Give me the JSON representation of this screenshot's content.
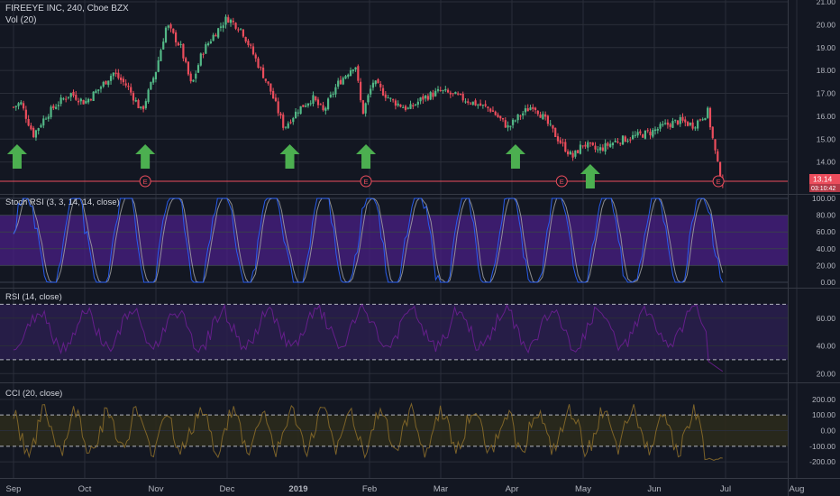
{
  "colors": {
    "background": "#131722",
    "grid": "#2a2e39",
    "axis_text": "#b2b5be",
    "up": "#53b987",
    "down": "#eb4d5c",
    "arrow": "#4caf50",
    "stoch_band": "#4a1f86",
    "stoch_k": "#2962ff",
    "stoch_d": "#aaaaaa",
    "rsi_band": "#2a1f4d",
    "rsi_line": "#7b1fa2",
    "cci_band": "#2b2a1c",
    "cci_line": "#8d6e2a",
    "earnings": "#eb4d5c",
    "price_badge": "#eb4d5c"
  },
  "main_legend": {
    "title": "FIREEYE INC, 240, Cboe BZX",
    "volume": "Vol (20)"
  },
  "stoch_legend": {
    "label": "Stoch RSI (3, 3, 14, 14, close)"
  },
  "rsi_legend": {
    "label": "RSI (14, close)"
  },
  "cci_legend": {
    "label": "CCI (20, close)"
  },
  "earnings_marker": "E",
  "last_price": {
    "value": "13.14",
    "countdown": "03:10:42"
  },
  "x_axis": {
    "labels": [
      "Sep",
      "Oct",
      "Nov",
      "Dec",
      "2019",
      "Feb",
      "Mar",
      "Apr",
      "May",
      "Jun",
      "Jul",
      "Aug"
    ]
  },
  "chart_data": [
    {
      "type": "candlestick",
      "title": "FIREEYE INC, 240, Cboe BZX",
      "ylim": [
        13.0,
        21.0
      ],
      "y_ticks": [
        "21.00",
        "20.00",
        "19.00",
        "18.00",
        "17.00",
        "16.00",
        "15.00",
        "14.00"
      ],
      "close_path": [
        {
          "m": 0.0,
          "v": 16.4
        },
        {
          "m": 0.1,
          "v": 16.6
        },
        {
          "m": 0.2,
          "v": 15.8
        },
        {
          "m": 0.28,
          "v": 15.2
        },
        {
          "m": 0.45,
          "v": 16.0
        },
        {
          "m": 0.6,
          "v": 16.5
        },
        {
          "m": 0.8,
          "v": 17.0
        },
        {
          "m": 1.0,
          "v": 16.6
        },
        {
          "m": 1.2,
          "v": 17.2
        },
        {
          "m": 1.4,
          "v": 17.9
        },
        {
          "m": 1.6,
          "v": 17.3
        },
        {
          "m": 1.8,
          "v": 16.2
        },
        {
          "m": 2.0,
          "v": 18.0
        },
        {
          "m": 2.15,
          "v": 20.0
        },
        {
          "m": 2.35,
          "v": 19.0
        },
        {
          "m": 2.5,
          "v": 17.3
        },
        {
          "m": 2.65,
          "v": 18.8
        },
        {
          "m": 2.8,
          "v": 19.5
        },
        {
          "m": 3.0,
          "v": 20.3
        },
        {
          "m": 3.2,
          "v": 19.8
        },
        {
          "m": 3.4,
          "v": 18.5
        },
        {
          "m": 3.6,
          "v": 17.2
        },
        {
          "m": 3.8,
          "v": 15.5
        },
        {
          "m": 4.0,
          "v": 16.3
        },
        {
          "m": 4.2,
          "v": 16.8
        },
        {
          "m": 4.35,
          "v": 16.2
        },
        {
          "m": 4.55,
          "v": 17.4
        },
        {
          "m": 4.8,
          "v": 18.3
        },
        {
          "m": 4.9,
          "v": 16.1
        },
        {
          "m": 5.05,
          "v": 17.5
        },
        {
          "m": 5.3,
          "v": 16.7
        },
        {
          "m": 5.55,
          "v": 16.3
        },
        {
          "m": 5.75,
          "v": 16.8
        },
        {
          "m": 6.0,
          "v": 17.1
        },
        {
          "m": 6.2,
          "v": 16.9
        },
        {
          "m": 6.45,
          "v": 16.6
        },
        {
          "m": 6.7,
          "v": 16.3
        },
        {
          "m": 6.95,
          "v": 15.5
        },
        {
          "m": 7.1,
          "v": 16.0
        },
        {
          "m": 7.3,
          "v": 16.5
        },
        {
          "m": 7.45,
          "v": 15.9
        },
        {
          "m": 7.65,
          "v": 15.0
        },
        {
          "m": 7.85,
          "v": 14.2
        },
        {
          "m": 8.0,
          "v": 14.8
        },
        {
          "m": 8.2,
          "v": 14.5
        },
        {
          "m": 8.45,
          "v": 14.9
        },
        {
          "m": 8.7,
          "v": 15.1
        },
        {
          "m": 8.95,
          "v": 15.3
        },
        {
          "m": 9.15,
          "v": 15.6
        },
        {
          "m": 9.35,
          "v": 15.8
        },
        {
          "m": 9.55,
          "v": 15.6
        },
        {
          "m": 9.75,
          "v": 16.2
        },
        {
          "m": 9.82,
          "v": 15.0
        },
        {
          "m": 9.9,
          "v": 13.7
        },
        {
          "m": 9.96,
          "v": 13.14
        }
      ],
      "arrows_at_month": [
        0.05,
        1.85,
        3.88,
        4.95,
        7.05,
        8.1
      ],
      "earnings_at_month": [
        1.85,
        4.95,
        7.7,
        9.9
      ],
      "axis_offset_month": 0.0
    },
    {
      "type": "line",
      "title": "Stoch RSI (3, 3, 14, 14, close)",
      "ylim": [
        0,
        100
      ],
      "y_ticks": [
        "100.00",
        "80.00",
        "60.00",
        "40.00",
        "20.00",
        "0.00"
      ],
      "band": [
        20,
        80
      ],
      "series": [
        {
          "values": []
        },
        {
          "values": []
        }
      ]
    },
    {
      "type": "line",
      "title": "RSI (14, close)",
      "ylim": [
        15,
        80
      ],
      "y_ticks": [
        "60.00",
        "40.00",
        "20.00"
      ],
      "band": [
        30,
        70
      ]
    },
    {
      "type": "line",
      "title": "CCI (20, close)",
      "ylim": [
        -280,
        280
      ],
      "y_ticks": [
        "200.00",
        "100.00",
        "0.00",
        "-100.00",
        "-200.00"
      ],
      "band": [
        -100,
        100
      ]
    }
  ]
}
